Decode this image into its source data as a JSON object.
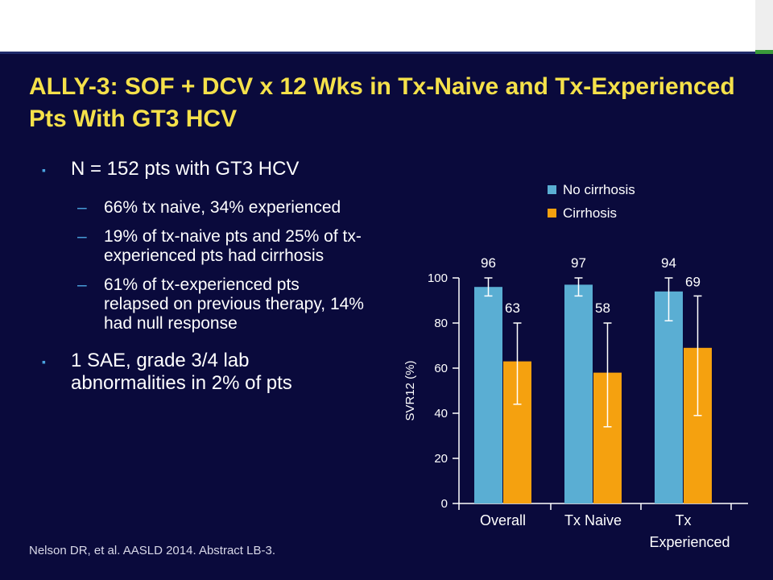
{
  "slide": {
    "title": "ALLY-3: SOF + DCV x 12 Wks in Tx-Naive and Tx-Experienced Pts With GT3 HCV",
    "bullets": [
      {
        "text": "N = 152 pts with GT3 HCV",
        "subs": [
          "66% tx naive, 34% experienced",
          "19% of tx-naive pts and 25% of tx-experienced pts had cirrhosis",
          "61% of tx-experienced pts relapsed on previous therapy, 14% had null response"
        ]
      },
      {
        "text": "1 SAE, grade 3/4 lab abnormalities in 2% of pts",
        "subs": []
      }
    ],
    "bullet_marker": "▪",
    "sub_marker": "–",
    "citation": "Nelson DR, et al. AASLD 2014. Abstract LB-3."
  },
  "colors": {
    "background": "#0a0a3c",
    "title": "#f5e14a",
    "accent": "#4aa3df"
  },
  "chart_data": {
    "type": "bar",
    "categories": [
      "Overall",
      "Tx Naive",
      "Tx Experienced"
    ],
    "category_label_lines": [
      [
        "Overall"
      ],
      [
        "Tx Naive"
      ],
      [
        "Tx",
        "Experienced"
      ]
    ],
    "series": [
      {
        "name": "No cirrhosis",
        "color": "#5aaed3",
        "values": [
          96,
          97,
          94
        ],
        "err_low": [
          92,
          92,
          81
        ],
        "err_high": [
          100,
          100,
          100
        ]
      },
      {
        "name": "Cirrhosis",
        "color": "#f5a10f",
        "values": [
          63,
          58,
          69
        ],
        "err_low": [
          44,
          34,
          39
        ],
        "err_high": [
          80,
          80,
          92
        ]
      }
    ],
    "ylabel": "SVR12 (%)",
    "xlabel": "",
    "ylim": [
      0,
      100
    ],
    "yticks": [
      0,
      20,
      40,
      60,
      80,
      100
    ],
    "legend_position": "top-left",
    "grid": false
  }
}
